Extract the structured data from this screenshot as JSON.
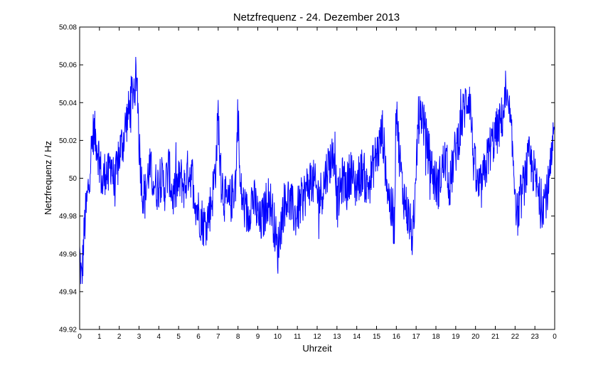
{
  "chart_data": {
    "type": "line",
    "title": "Netzfrequenz - 24. Dezember 2013",
    "xlabel": "Uhrzeit",
    "ylabel": "Netzfrequenz / Hz",
    "xlim": [
      0,
      24
    ],
    "ylim": [
      49.92,
      50.08
    ],
    "xticks": [
      "0",
      "1",
      "2",
      "3",
      "4",
      "5",
      "6",
      "7",
      "8",
      "9",
      "10",
      "11",
      "12",
      "13",
      "14",
      "15",
      "16",
      "17",
      "18",
      "19",
      "20",
      "21",
      "22",
      "23",
      "0"
    ],
    "yticks": [
      "49.92",
      "49.94",
      "49.96",
      "49.98",
      "50",
      "50.02",
      "50.04",
      "50.06",
      "50.08"
    ],
    "grid": false,
    "series": [
      {
        "color": "#0000ff",
        "x": [
          0,
          0.1,
          0.25,
          0.4,
          0.55,
          0.7,
          0.85,
          1.0,
          1.15,
          1.3,
          1.45,
          1.6,
          1.75,
          1.9,
          2.05,
          2.2,
          2.35,
          2.5,
          2.65,
          2.8,
          2.9,
          3.0,
          3.15,
          3.3,
          3.5,
          3.7,
          3.9,
          4.1,
          4.3,
          4.5,
          4.7,
          4.9,
          5.1,
          5.3,
          5.5,
          5.7,
          5.9,
          6.1,
          6.3,
          6.5,
          6.7,
          6.9,
          7.0,
          7.1,
          7.3,
          7.5,
          7.7,
          7.9,
          8.0,
          8.1,
          8.3,
          8.5,
          8.7,
          8.9,
          9.1,
          9.3,
          9.5,
          9.7,
          9.9,
          10.0,
          10.1,
          10.3,
          10.5,
          10.7,
          10.9,
          11.1,
          11.3,
          11.5,
          11.7,
          11.9,
          12.1,
          12.3,
          12.5,
          12.7,
          12.9,
          13.0,
          13.1,
          13.3,
          13.5,
          13.7,
          13.9,
          14.1,
          14.3,
          14.5,
          14.7,
          14.9,
          15.1,
          15.3,
          15.5,
          15.7,
          15.9,
          16.0,
          16.1,
          16.3,
          16.5,
          16.7,
          16.9,
          17.0,
          17.1,
          17.3,
          17.5,
          17.7,
          17.9,
          18.1,
          18.3,
          18.5,
          18.7,
          18.9,
          19.1,
          19.3,
          19.5,
          19.7,
          19.9,
          20.1,
          20.3,
          20.5,
          20.7,
          20.9,
          21.1,
          21.3,
          21.5,
          21.7,
          21.9,
          22.1,
          22.3,
          22.5,
          22.7,
          22.9,
          23.1,
          23.3,
          23.5,
          23.7,
          23.9,
          24.0
        ],
        "y": [
          49.96,
          49.945,
          49.975,
          49.99,
          50.01,
          50.025,
          50.02,
          50.01,
          49.995,
          50.005,
          50.0,
          50.01,
          49.995,
          50.005,
          50.015,
          50.02,
          50.03,
          50.035,
          50.045,
          50.05,
          50.055,
          50.02,
          49.995,
          49.99,
          50.005,
          50.0,
          49.995,
          50.0,
          49.995,
          50.005,
          49.99,
          49.995,
          50.0,
          49.995,
          50.005,
          50.0,
          49.985,
          49.98,
          49.975,
          49.98,
          49.99,
          50.01,
          50.035,
          50.005,
          49.99,
          49.985,
          49.99,
          50.0,
          50.04,
          49.995,
          49.985,
          49.98,
          49.99,
          49.985,
          49.975,
          49.98,
          49.99,
          49.985,
          49.97,
          49.96,
          49.97,
          49.985,
          49.99,
          49.985,
          49.98,
          49.985,
          49.99,
          49.995,
          50.0,
          49.995,
          49.99,
          49.995,
          50.005,
          50.01,
          50.015,
          49.985,
          49.99,
          50.0,
          49.995,
          50.005,
          49.995,
          50.0,
          50.005,
          49.995,
          50.0,
          50.01,
          50.015,
          50.025,
          50.0,
          49.985,
          49.975,
          50.045,
          50.02,
          49.995,
          49.985,
          49.975,
          49.965,
          50.005,
          50.03,
          50.035,
          50.02,
          50.01,
          50.0,
          49.995,
          50.005,
          50.01,
          49.995,
          50.01,
          50.02,
          50.03,
          50.04,
          50.045,
          50.01,
          49.995,
          49.995,
          50.005,
          50.015,
          50.02,
          50.025,
          50.03,
          50.04,
          50.035,
          50.01,
          49.98,
          49.99,
          50.0,
          50.01,
          50.005,
          49.995,
          49.985,
          49.99,
          49.995,
          50.015,
          50.025
        ]
      }
    ]
  }
}
